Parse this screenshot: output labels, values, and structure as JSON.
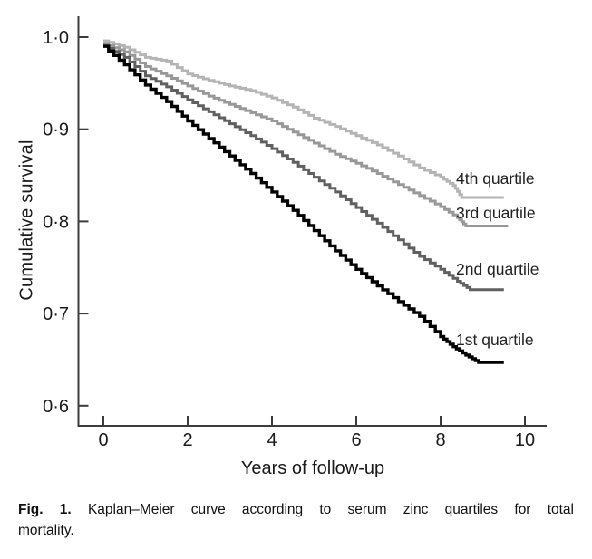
{
  "figure": {
    "y_axis": {
      "title": "Cumulative survival",
      "tick_labels": [
        "1·0",
        "0·9",
        "0·8",
        "0·7",
        "0·6"
      ],
      "tick_values": [
        1.0,
        0.9,
        0.8,
        0.7,
        0.6
      ]
    },
    "x_axis": {
      "title": "Years of follow-up",
      "tick_labels": [
        "0",
        "2",
        "4",
        "6",
        "8",
        "10"
      ],
      "tick_values": [
        0,
        2,
        4,
        6,
        8,
        10
      ]
    },
    "caption": {
      "label": "Fig. 1.",
      "line1": "Kaplan–Meier curve according to serum zinc quartiles for total",
      "line2": "mortality."
    }
  },
  "chart_data": {
    "type": "line",
    "subtype": "kaplan-meier-step",
    "title": "",
    "xlabel": "Years of follow-up",
    "ylabel": "Cumulative survival",
    "xlim": [
      -0.6,
      10.5
    ],
    "ylim": [
      0.58,
      1.02
    ],
    "grid": false,
    "legend_position": "inline-right-labels",
    "axis_color": "#3c3c3c",
    "text_color": "#1a1a1a",
    "series": [
      {
        "name": "1st quartile",
        "color": "#000000",
        "points": [
          [
            0,
            0.99
          ],
          [
            0.5,
            0.97
          ],
          [
            1,
            0.948
          ],
          [
            1.5,
            0.93
          ],
          [
            2,
            0.909
          ],
          [
            2.5,
            0.89
          ],
          [
            3,
            0.871
          ],
          [
            3.5,
            0.852
          ],
          [
            4,
            0.832
          ],
          [
            4.5,
            0.812
          ],
          [
            5,
            0.79
          ],
          [
            5.5,
            0.768
          ],
          [
            6,
            0.748
          ],
          [
            6.5,
            0.73
          ],
          [
            7,
            0.713
          ],
          [
            7.5,
            0.697
          ],
          [
            8,
            0.675
          ],
          [
            8.3,
            0.664
          ],
          [
            8.6,
            0.655
          ],
          [
            8.9,
            0.647
          ],
          [
            9.5,
            0.647
          ]
        ]
      },
      {
        "name": "2nd quartile",
        "color": "#606060",
        "points": [
          [
            0,
            0.991
          ],
          [
            0.5,
            0.978
          ],
          [
            1,
            0.958
          ],
          [
            1.5,
            0.946
          ],
          [
            2,
            0.932
          ],
          [
            2.5,
            0.919
          ],
          [
            3,
            0.906
          ],
          [
            3.5,
            0.893
          ],
          [
            4,
            0.879
          ],
          [
            4.5,
            0.864
          ],
          [
            5,
            0.848
          ],
          [
            5.5,
            0.832
          ],
          [
            6,
            0.815
          ],
          [
            6.5,
            0.798
          ],
          [
            7,
            0.78
          ],
          [
            7.5,
            0.762
          ],
          [
            8,
            0.748
          ],
          [
            8.4,
            0.735
          ],
          [
            8.7,
            0.726
          ],
          [
            9.5,
            0.726
          ]
        ]
      },
      {
        "name": "3rd quartile",
        "color": "#989898",
        "points": [
          [
            0,
            0.993
          ],
          [
            0.5,
            0.984
          ],
          [
            1,
            0.968
          ],
          [
            1.5,
            0.958
          ],
          [
            2,
            0.947
          ],
          [
            2.5,
            0.936
          ],
          [
            3,
            0.927
          ],
          [
            3.5,
            0.918
          ],
          [
            4,
            0.909
          ],
          [
            4.5,
            0.897
          ],
          [
            5,
            0.885
          ],
          [
            5.5,
            0.873
          ],
          [
            6,
            0.863
          ],
          [
            6.5,
            0.852
          ],
          [
            7,
            0.84
          ],
          [
            7.5,
            0.828
          ],
          [
            8,
            0.816
          ],
          [
            8.4,
            0.804
          ],
          [
            8.6,
            0.795
          ],
          [
            9.6,
            0.795
          ]
        ]
      },
      {
        "name": "4th quartile",
        "color": "#b4b4b4",
        "points": [
          [
            0,
            0.996
          ],
          [
            0.5,
            0.989
          ],
          [
            1,
            0.978
          ],
          [
            1.5,
            0.974
          ],
          [
            2,
            0.96
          ],
          [
            2.5,
            0.953
          ],
          [
            3,
            0.947
          ],
          [
            3.5,
            0.942
          ],
          [
            4,
            0.934
          ],
          [
            4.5,
            0.924
          ],
          [
            5,
            0.912
          ],
          [
            5.5,
            0.903
          ],
          [
            6,
            0.893
          ],
          [
            6.5,
            0.883
          ],
          [
            7,
            0.871
          ],
          [
            7.5,
            0.858
          ],
          [
            8,
            0.848
          ],
          [
            8.3,
            0.839
          ],
          [
            8.5,
            0.826
          ],
          [
            9.5,
            0.826
          ]
        ]
      }
    ]
  }
}
